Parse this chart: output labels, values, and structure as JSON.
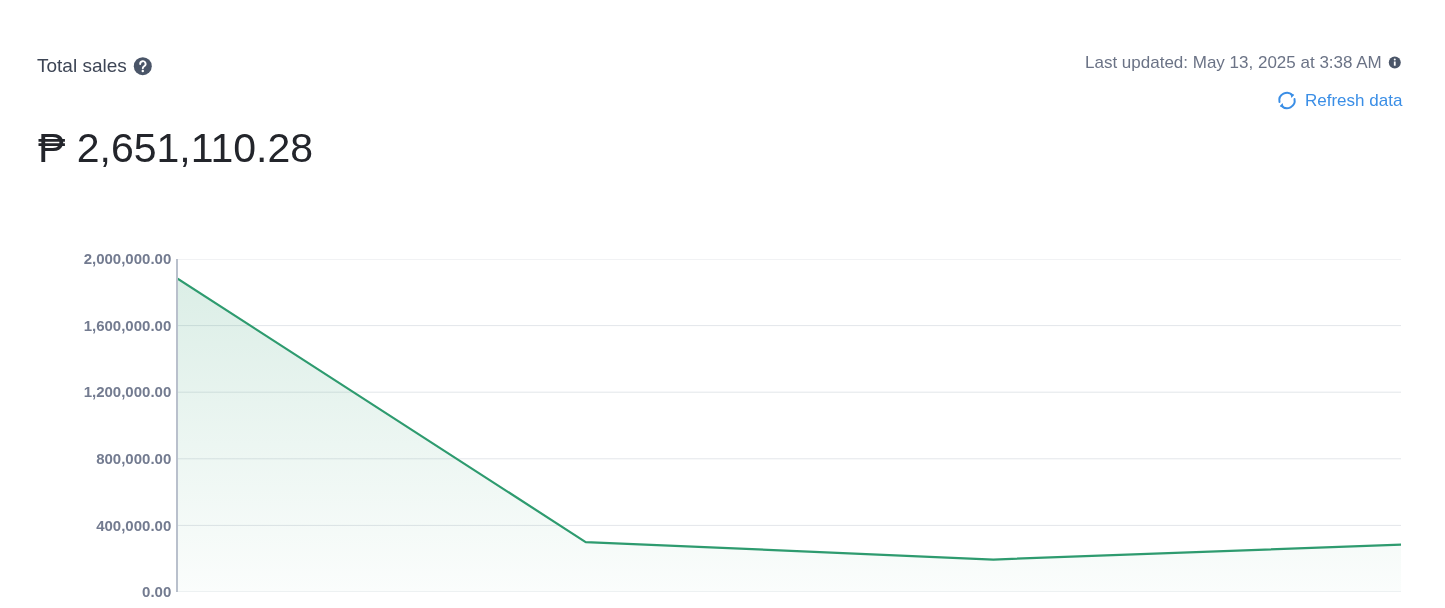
{
  "chart_data": {
    "type": "area",
    "title": "Total sales",
    "subtitle": "₱ 2,651,110.28",
    "annotations": [
      "Last updated: May 13, 2025 at 3:38 AM",
      "Refresh data"
    ],
    "categories": [
      null,
      null,
      null,
      null
    ],
    "series": [
      {
        "color": "#2e9b6f",
        "values": [
          1880000,
          300000,
          195000,
          285000
        ]
      }
    ],
    "ylim": [
      0,
      2000000
    ],
    "yticks": [
      {
        "value": 0,
        "label": "0.00"
      },
      {
        "value": 400000,
        "label": "400,000.00"
      },
      {
        "value": 800000,
        "label": "800,000.00"
      },
      {
        "value": 1200000,
        "label": "1,200,000.00"
      },
      {
        "value": 1600000,
        "label": "1,600,000.00"
      },
      {
        "value": 2000000,
        "label": "2,000,000.00"
      }
    ],
    "grid": "y",
    "tick_labels": "y"
  }
}
